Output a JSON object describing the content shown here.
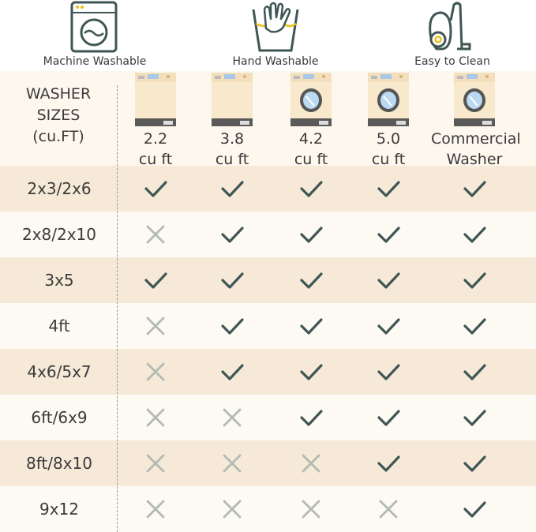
{
  "features": [
    {
      "icon": "washing-machine-icon",
      "label": "Machine Washable"
    },
    {
      "icon": "hand-wash-icon",
      "label": "Hand Washable"
    },
    {
      "icon": "vacuum-cleaner-icon",
      "label": "Easy to Clean"
    }
  ],
  "header": {
    "line1": "WASHER",
    "line2": "SIZES",
    "line3": "(cu.FT)"
  },
  "columns": [
    {
      "line1": "2.2",
      "line2": "cu ft",
      "door": false
    },
    {
      "line1": "3.8",
      "line2": "cu ft",
      "door": false
    },
    {
      "line1": "4.2",
      "line2": "cu ft",
      "door": true
    },
    {
      "line1": "5.0",
      "line2": "cu ft",
      "door": true
    },
    {
      "line1": "Commercial",
      "line2": "Washer",
      "door": true
    }
  ],
  "rows": [
    {
      "size": "2x3/2x6",
      "fits": [
        true,
        true,
        true,
        true,
        true
      ]
    },
    {
      "size": "2x8/2x10",
      "fits": [
        false,
        true,
        true,
        true,
        true
      ]
    },
    {
      "size": "3x5",
      "fits": [
        true,
        true,
        true,
        true,
        true
      ]
    },
    {
      "size": "4ft",
      "fits": [
        false,
        true,
        true,
        true,
        true
      ]
    },
    {
      "size": "4x6/5x7",
      "fits": [
        false,
        true,
        true,
        true,
        true
      ]
    },
    {
      "size": "6ft/6x9",
      "fits": [
        false,
        false,
        true,
        true,
        true
      ]
    },
    {
      "size": "8ft/8x10",
      "fits": [
        false,
        false,
        false,
        true,
        true
      ]
    },
    {
      "size": "9x12",
      "fits": [
        false,
        false,
        false,
        false,
        true
      ]
    }
  ],
  "colors": {
    "check": "#3f5654",
    "cross": "#b3bab3",
    "icon": "#3f5654",
    "accent": "#e8c21a",
    "row_odd": "#f6e9d8",
    "row_even": "#fdf9f3"
  }
}
